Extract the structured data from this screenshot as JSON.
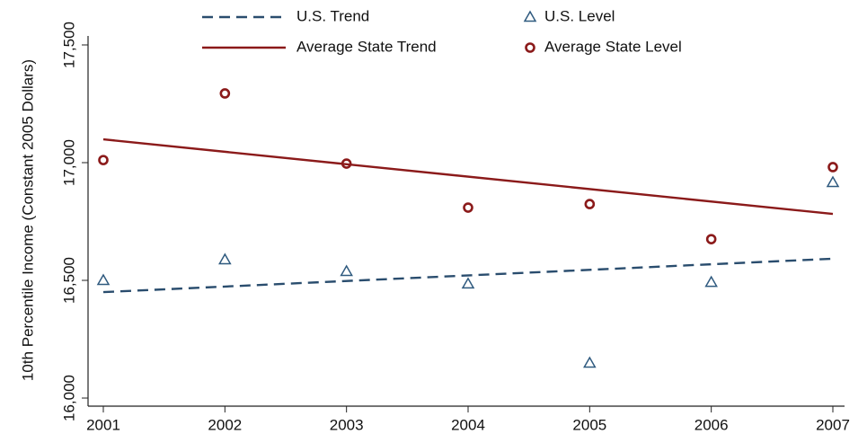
{
  "chart_data": {
    "type": "line",
    "y_axis_label": "10th Percentile Income (Constant 2005 Dollars)",
    "xlim": [
      2001,
      2007
    ],
    "xticks": [
      2001,
      2002,
      2003,
      2004,
      2005,
      2006,
      2007
    ],
    "ylim": [
      16000,
      17500
    ],
    "yticks": [
      {
        "value": 16000,
        "label": "16,000"
      },
      {
        "value": 16500,
        "label": "16,500"
      },
      {
        "value": 17000,
        "label": "17,000"
      },
      {
        "value": 17500,
        "label": "17,500"
      }
    ],
    "series": [
      {
        "name": "U.S. Trend",
        "color": "#2a4d6e",
        "style": "dashed",
        "x": [
          2001,
          2007
        ],
        "values": [
          16450,
          16592
        ]
      },
      {
        "name": "U.S. Level",
        "color": "#2f5a7f",
        "marker": "triangle",
        "x": [
          2001,
          2002,
          2003,
          2004,
          2005,
          2006,
          2007
        ],
        "values": [
          16500,
          16588,
          16538,
          16485,
          16149,
          16492,
          16916
        ]
      },
      {
        "name": "Average State Trend",
        "color": "#8b1a1a",
        "style": "solid",
        "x": [
          2001,
          2007
        ],
        "values": [
          17099,
          16782
        ]
      },
      {
        "name": "Average State Level",
        "color": "#8b1a1a",
        "marker": "circle",
        "x": [
          2001,
          2002,
          2003,
          2004,
          2005,
          2006,
          2007
        ],
        "values": [
          17011,
          17294,
          16996,
          16809,
          16824,
          16675,
          16981
        ]
      }
    ]
  }
}
